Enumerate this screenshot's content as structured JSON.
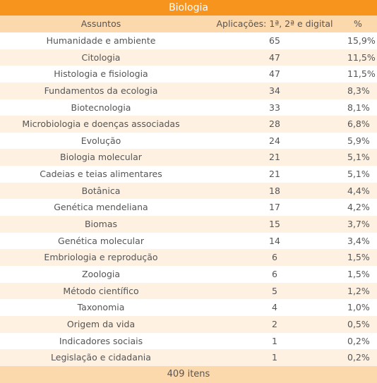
{
  "table": {
    "title": "Biologia",
    "header": [
      "Assuntos",
      "Aplicações: 1ª, 2ª e digital",
      "%"
    ],
    "rows": [
      [
        "Humanidade e ambiente",
        65,
        "15,9%"
      ],
      [
        "Citologia",
        47,
        "11,5%"
      ],
      [
        "Histologia e fisiologia",
        47,
        "11,5%"
      ],
      [
        "Fundamentos da ecologia",
        34,
        "8,3%"
      ],
      [
        "Biotecnologia",
        33,
        "8,1%"
      ],
      [
        "Microbiologia e doenças associadas",
        28,
        "6,8%"
      ],
      [
        "Evolução",
        24,
        "5,9%"
      ],
      [
        "Biologia molecular",
        21,
        "5,1%"
      ],
      [
        "Cadeias e teias alimentares",
        21,
        "5,1%"
      ],
      [
        "Botânica",
        18,
        "4,4%"
      ],
      [
        "Genética mendeliana",
        17,
        "4,2%"
      ],
      [
        "Biomas",
        15,
        "3,7%"
      ],
      [
        "Genética molecular",
        14,
        "3,4%"
      ],
      [
        "Embriologia e reprodução",
        6,
        "1,5%"
      ],
      [
        "Zoologia",
        6,
        "1,5%"
      ],
      [
        "Método científico",
        5,
        "1,2%"
      ],
      [
        "Taxonomia",
        4,
        "1,0%"
      ],
      [
        "Origem da vida",
        2,
        "0,5%"
      ],
      [
        "Indicadores sociais",
        1,
        "0,2%"
      ],
      [
        "Legislação e cidadania",
        1,
        "0,2%"
      ]
    ],
    "footer": "409 itens"
  }
}
